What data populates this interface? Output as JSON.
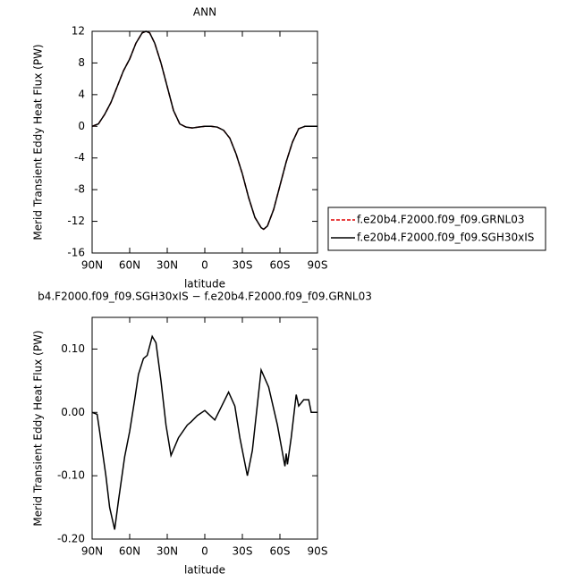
{
  "chart_data": [
    {
      "type": "line",
      "title": "ANN",
      "xlabel": "latitude",
      "ylabel": "Merid Transient Eddy Heat Flux (PW)",
      "x": [
        90,
        85,
        80,
        75,
        70,
        65,
        60,
        55,
        50,
        47,
        44,
        40,
        35,
        30,
        25,
        20,
        15,
        10,
        5,
        0,
        -5,
        -10,
        -15,
        -20,
        -25,
        -30,
        -35,
        -40,
        -45,
        -47,
        -50,
        -55,
        -60,
        -65,
        -70,
        -75,
        -80,
        -85,
        -90
      ],
      "series": [
        {
          "name": "f.e20b4.F2000.f09_f09.GRNL03",
          "color": "#e00000",
          "linestyle": "dashed",
          "values": [
            0,
            0.3,
            1.5,
            3,
            5,
            7,
            8.5,
            10.5,
            11.8,
            12,
            11.8,
            10.5,
            8,
            5,
            2,
            0.3,
            -0.1,
            -0.2,
            -0.1,
            0,
            0,
            -0.1,
            -0.5,
            -1.5,
            -3.5,
            -6,
            -9,
            -11.5,
            -12.8,
            -13,
            -12.6,
            -10.5,
            -7.5,
            -4.5,
            -2,
            -0.3,
            0,
            0,
            0
          ]
        },
        {
          "name": "f.e20b4.F2000.f09_f09.SGH30xIS",
          "color": "#000000",
          "linestyle": "solid",
          "values": [
            0,
            0.3,
            1.5,
            3,
            5,
            7,
            8.5,
            10.5,
            11.8,
            12,
            11.8,
            10.5,
            8,
            5,
            2,
            0.3,
            -0.1,
            -0.2,
            -0.1,
            0,
            0,
            -0.1,
            -0.5,
            -1.5,
            -3.5,
            -6,
            -9,
            -11.5,
            -12.8,
            -13,
            -12.6,
            -10.5,
            -7.5,
            -4.5,
            -2,
            -0.3,
            0,
            0,
            0
          ]
        }
      ],
      "xlim": [
        90,
        -90
      ],
      "xticks": [
        {
          "value": 90,
          "label": "90N"
        },
        {
          "value": 60,
          "label": "60N"
        },
        {
          "value": 30,
          "label": "30N"
        },
        0,
        {
          "value": -30,
          "label": "30S"
        },
        {
          "value": -60,
          "label": "60S"
        },
        {
          "value": -90,
          "label": "90S"
        }
      ],
      "ylim": [
        -16,
        12
      ],
      "yticks": [
        -16,
        -12,
        -8,
        -4,
        0,
        4,
        8,
        12
      ],
      "legend": "right"
    },
    {
      "type": "line",
      "title": "b4.F2000.f09_f09.SGH30xIS − f.e20b4.F2000.f09_f09.GRNL03",
      "xlabel": "latitude",
      "ylabel": "Merid Transient Eddy Heat Flux (PW)",
      "x": [
        90,
        86,
        84,
        79,
        76,
        72,
        69,
        64,
        60,
        56,
        53,
        49,
        46,
        42,
        39,
        35,
        31,
        27,
        21,
        14,
        11,
        6,
        0,
        -8,
        -19,
        -24,
        -28,
        -34,
        -38,
        -45,
        -51,
        -58,
        -64,
        -65,
        -66,
        -69,
        -73,
        -75,
        -79,
        -83,
        -85,
        -90
      ],
      "series": [
        {
          "color": "#000000",
          "linestyle": "solid",
          "values": [
            0,
            -0.003,
            -0.03,
            -0.1,
            -0.15,
            -0.185,
            -0.14,
            -0.07,
            -0.03,
            0.02,
            0.06,
            0.085,
            0.09,
            0.12,
            0.11,
            0.05,
            -0.02,
            -0.068,
            -0.04,
            -0.02,
            -0.015,
            -0.005,
            0.003,
            -0.012,
            0.032,
            0.01,
            -0.04,
            -0.1,
            -0.06,
            0.067,
            0.04,
            -0.02,
            -0.085,
            -0.065,
            -0.082,
            -0.04,
            0.028,
            0.01,
            0.02,
            0.02,
            0,
            0
          ]
        }
      ],
      "xlim": [
        90,
        -90
      ],
      "xticks": [
        {
          "value": 90,
          "label": "90N"
        },
        {
          "value": 60,
          "label": "60N"
        },
        {
          "value": 30,
          "label": "30N"
        },
        0,
        {
          "value": -30,
          "label": "30S"
        },
        {
          "value": -60,
          "label": "60S"
        },
        {
          "value": -90,
          "label": "90S"
        }
      ],
      "ylim": [
        -0.2,
        0.15
      ],
      "yticks": [
        {
          "value": -0.2,
          "label": "-0.20"
        },
        {
          "value": -0.1,
          "label": "-0.10"
        },
        {
          "value": 0,
          "label": "0.00"
        },
        {
          "value": 0.1,
          "label": "0.10"
        }
      ]
    }
  ]
}
